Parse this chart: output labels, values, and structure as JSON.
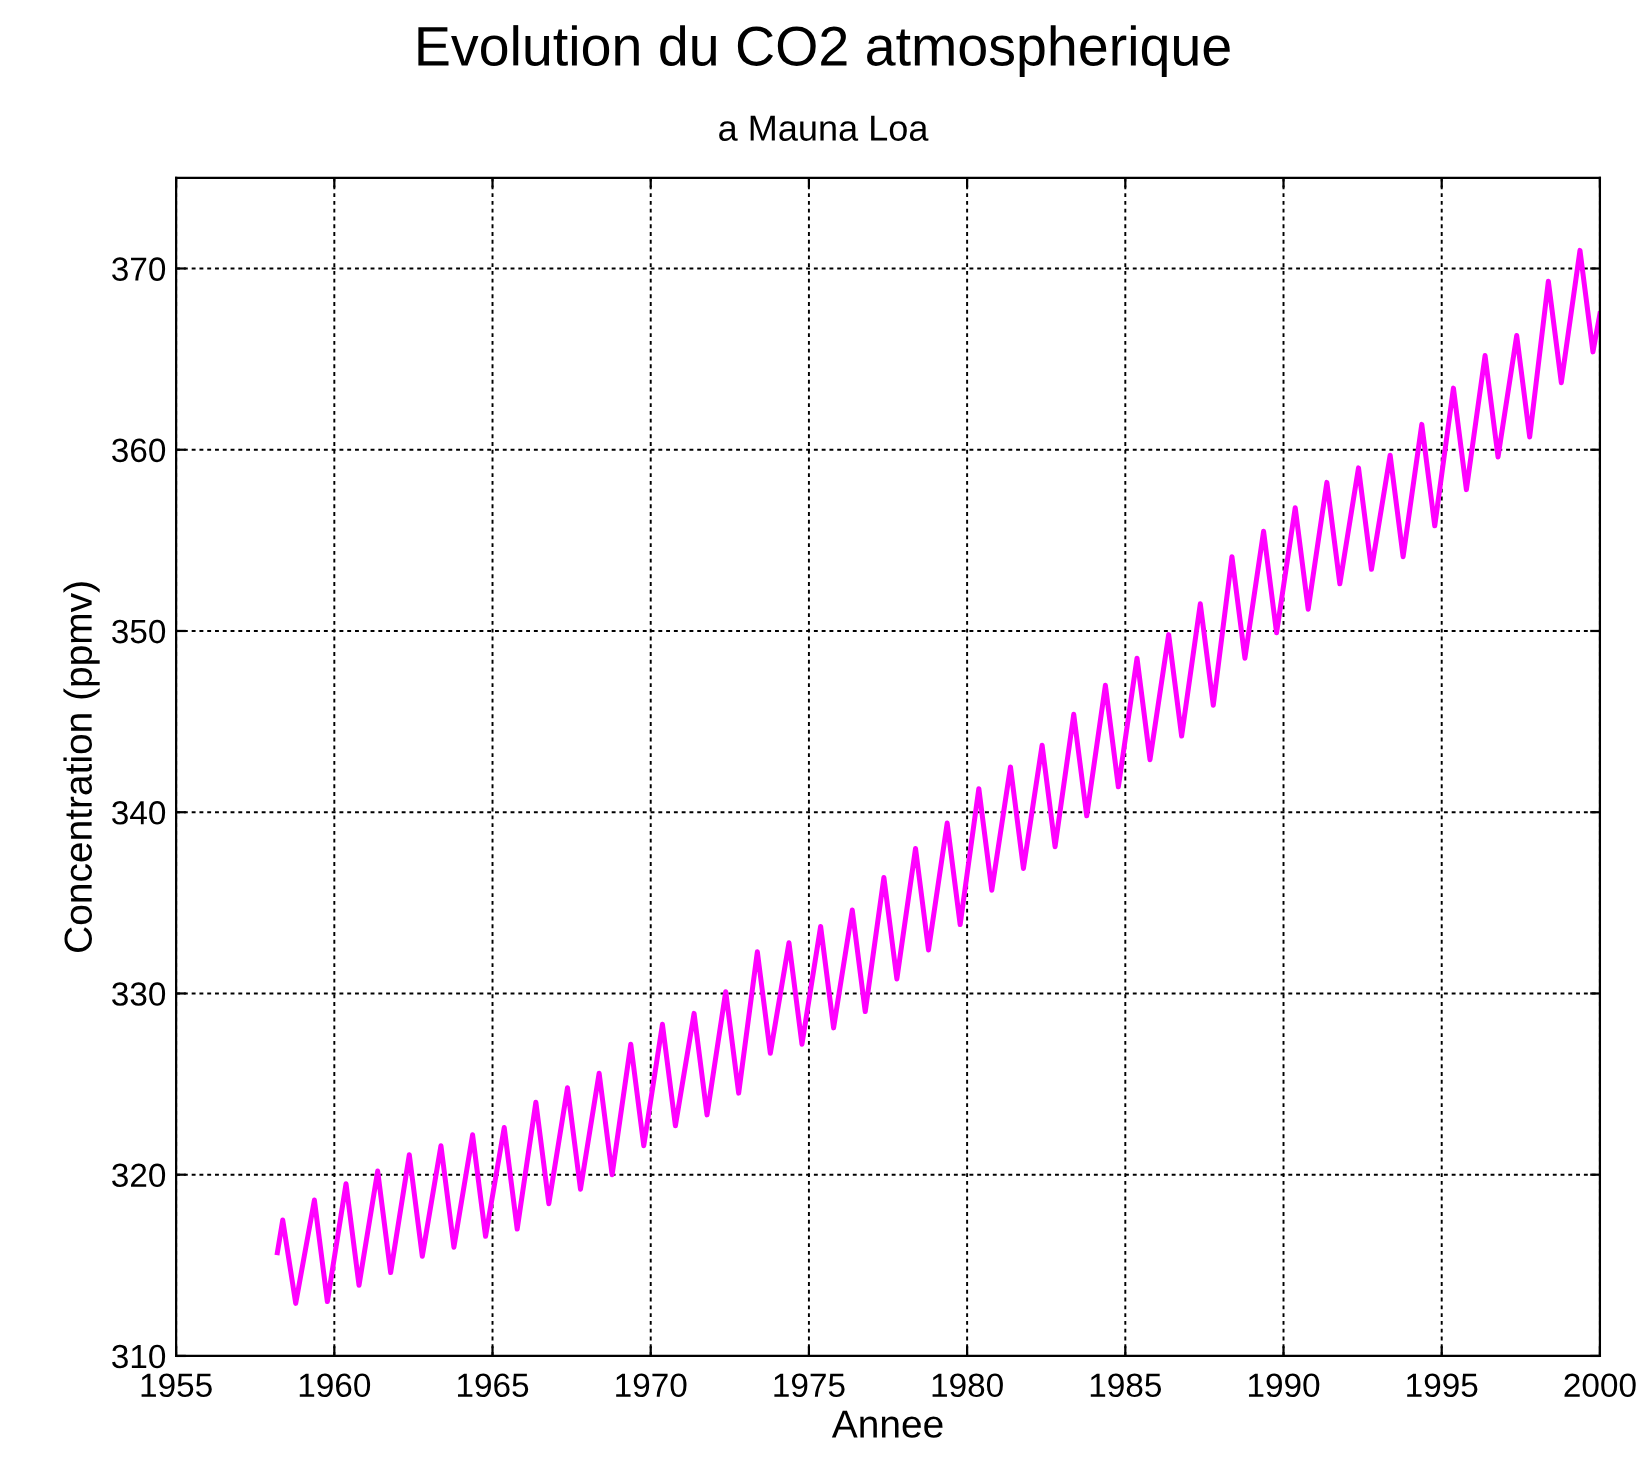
{
  "chart_data": {
    "type": "line",
    "title": "Evolution du CO2 atmospherique",
    "subtitle": "a Mauna Loa",
    "xlabel": "Annee",
    "ylabel": "Concentration (ppmv)",
    "series": [
      {
        "color": "#ff00ff",
        "x": [
          1958.2,
          1958.37,
          1958.78,
          1959.37,
          1959.78,
          1960.37,
          1960.78,
          1961.37,
          1961.78,
          1962.37,
          1962.78,
          1963.37,
          1963.78,
          1964.37,
          1964.78,
          1965.37,
          1965.78,
          1966.37,
          1966.78,
          1967.37,
          1967.78,
          1968.37,
          1968.78,
          1969.37,
          1969.78,
          1970.37,
          1970.78,
          1971.37,
          1971.78,
          1972.37,
          1972.78,
          1973.37,
          1973.78,
          1974.37,
          1974.78,
          1975.37,
          1975.78,
          1976.37,
          1976.78,
          1977.37,
          1977.78,
          1978.37,
          1978.78,
          1979.37,
          1979.78,
          1980.37,
          1980.78,
          1981.37,
          1981.78,
          1982.37,
          1982.78,
          1983.37,
          1983.78,
          1984.37,
          1984.78,
          1985.37,
          1985.78,
          1986.37,
          1986.78,
          1987.37,
          1987.78,
          1988.37,
          1988.78,
          1989.37,
          1989.78,
          1990.37,
          1990.78,
          1991.37,
          1991.78,
          1992.37,
          1992.78,
          1993.37,
          1993.78,
          1994.37,
          1994.78,
          1995.37,
          1995.78,
          1996.37,
          1996.78,
          1997.37,
          1997.78,
          1998.37,
          1998.78,
          1999.37,
          1999.78,
          2000.0
        ],
        "values": [
          315.7,
          317.5,
          312.9,
          318.6,
          313.0,
          319.5,
          313.9,
          320.2,
          314.6,
          321.1,
          315.5,
          321.6,
          316.0,
          322.2,
          316.6,
          322.6,
          317.0,
          324.0,
          318.4,
          324.8,
          319.2,
          325.6,
          320.0,
          327.2,
          321.6,
          328.3,
          322.7,
          328.9,
          323.3,
          330.1,
          324.5,
          332.3,
          326.7,
          332.8,
          327.2,
          333.7,
          328.1,
          334.6,
          329.0,
          336.4,
          330.8,
          338.0,
          332.4,
          339.4,
          333.8,
          341.3,
          335.7,
          342.5,
          336.9,
          343.7,
          338.1,
          345.4,
          339.8,
          347.0,
          341.4,
          348.5,
          342.9,
          349.8,
          344.2,
          351.5,
          345.9,
          354.1,
          348.5,
          355.5,
          349.9,
          356.8,
          351.2,
          358.2,
          352.6,
          359.0,
          353.4,
          359.7,
          354.1,
          361.4,
          355.8,
          363.4,
          357.8,
          365.2,
          359.6,
          366.3,
          360.7,
          369.3,
          363.7,
          371.0,
          365.4,
          367.5
        ]
      }
    ],
    "xlim": [
      1955,
      2000
    ],
    "xticks": [
      1955,
      1960,
      1965,
      1970,
      1975,
      1980,
      1985,
      1990,
      1995,
      2000
    ],
    "ylim": [
      310,
      375
    ],
    "yticks": [
      310,
      320,
      330,
      340,
      350,
      360,
      370
    ],
    "grid": true,
    "marker": "none",
    "line_style": "solid"
  }
}
